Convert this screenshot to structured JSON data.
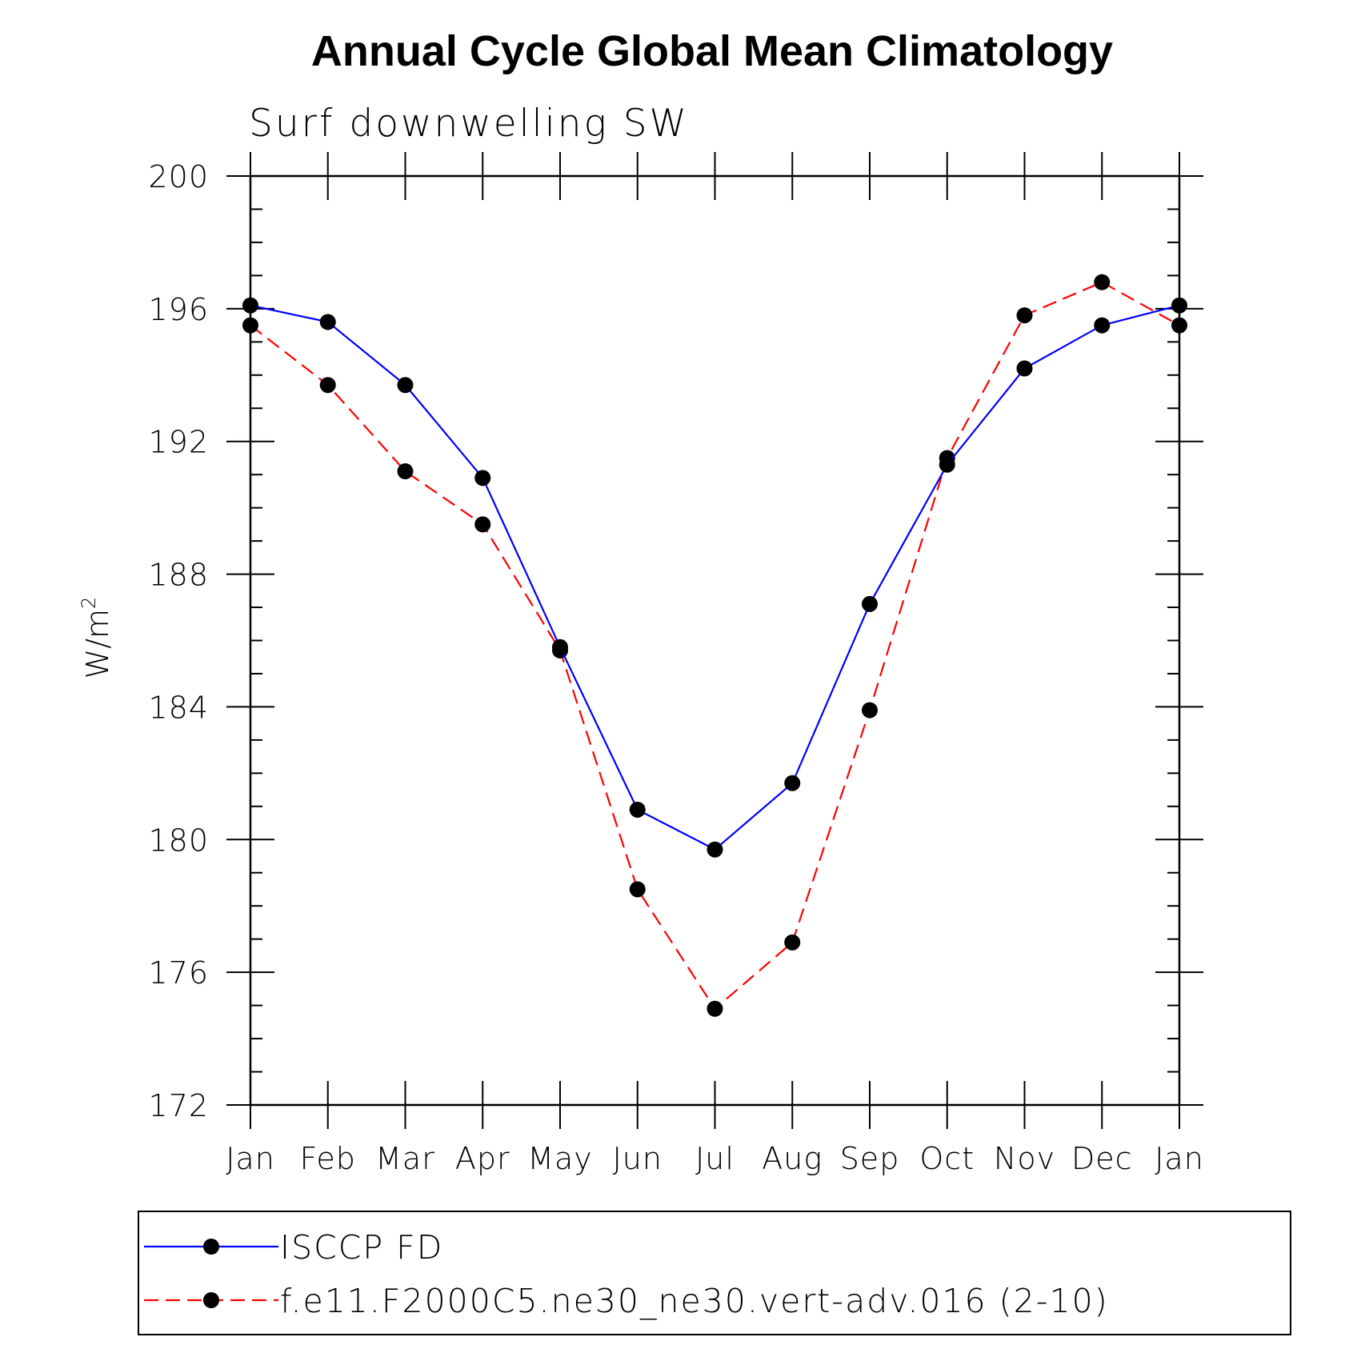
{
  "chart_data": {
    "type": "line",
    "title": "Annual Cycle Global Mean Climatology",
    "subtitle": "Surf downwelling SW",
    "ylabel": "W/m²",
    "ylabel_base": "W/m",
    "ylabel_sup": "2",
    "xlabel": "",
    "ylim": [
      172,
      200
    ],
    "yticks": [
      "200",
      "196",
      "192",
      "188",
      "184",
      "180",
      "176",
      "172"
    ],
    "ytick_values": [
      200,
      196,
      192,
      188,
      184,
      180,
      176,
      172
    ],
    "yminor_step": 1,
    "categories": [
      "Jan",
      "Feb",
      "Mar",
      "Apr",
      "May",
      "Jun",
      "Jul",
      "Aug",
      "Sep",
      "Oct",
      "Nov",
      "Dec",
      "Jan"
    ],
    "grid": false,
    "legend_position": "bottom",
    "series": [
      {
        "name": "ISCCP FD",
        "color": "#0000ff",
        "line_style": "solid",
        "marker": "filled-circle",
        "values": [
          196.1,
          195.6,
          193.7,
          190.9,
          185.8,
          180.9,
          179.7,
          181.7,
          187.1,
          191.3,
          194.2,
          195.5,
          196.1
        ]
      },
      {
        "name": "f.e11.F2000C5.ne30_ne30.vert-adv.016 (2-10)",
        "color": "#ff0000",
        "line_style": "dashed",
        "marker": "filled-circle",
        "values": [
          195.5,
          193.7,
          191.1,
          189.5,
          185.7,
          178.5,
          174.9,
          176.9,
          183.9,
          191.5,
          195.8,
          196.8,
          195.5
        ]
      }
    ]
  }
}
